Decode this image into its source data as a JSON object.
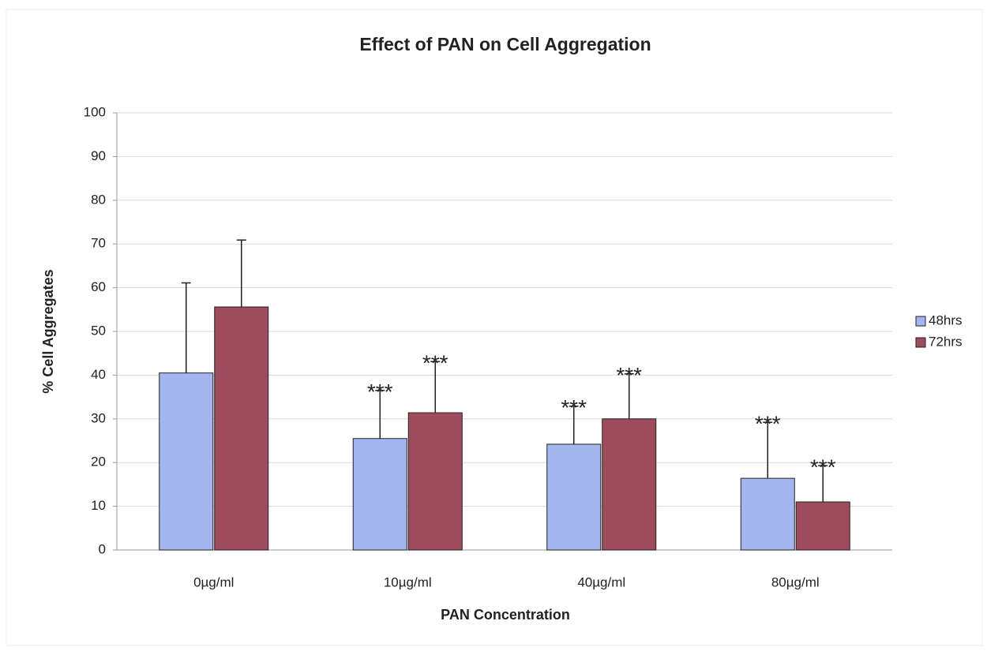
{
  "chart_data": {
    "type": "bar",
    "title": "Effect of PAN on Cell Aggregation",
    "x_label": "PAN Concentration",
    "y_label": "% Cell Aggregates",
    "categories": [
      "0µg/ml",
      "10µg/ml",
      "40µg/ml",
      "80µg/ml"
    ],
    "series": [
      {
        "name": "48hrs",
        "color": "#a3b6f0",
        "values": [
          40.5,
          25.5,
          24.2,
          16.4
        ],
        "errors": [
          20.6,
          11,
          8.7,
          12.8
        ],
        "annotations": [
          null,
          "***",
          "***",
          "***"
        ]
      },
      {
        "name": "72hrs",
        "color": "#9e4b5b",
        "values": [
          55.6,
          31.4,
          30,
          11
        ],
        "errors": [
          15.3,
          11.7,
          10.3,
          8.3
        ],
        "annotations": [
          null,
          "***",
          "***",
          "***"
        ]
      }
    ],
    "ylim": [
      0,
      100
    ],
    "yticks": [
      0,
      10,
      20,
      30,
      40,
      50,
      60,
      70,
      80,
      90,
      100
    ],
    "grid": true,
    "legend": "right"
  }
}
